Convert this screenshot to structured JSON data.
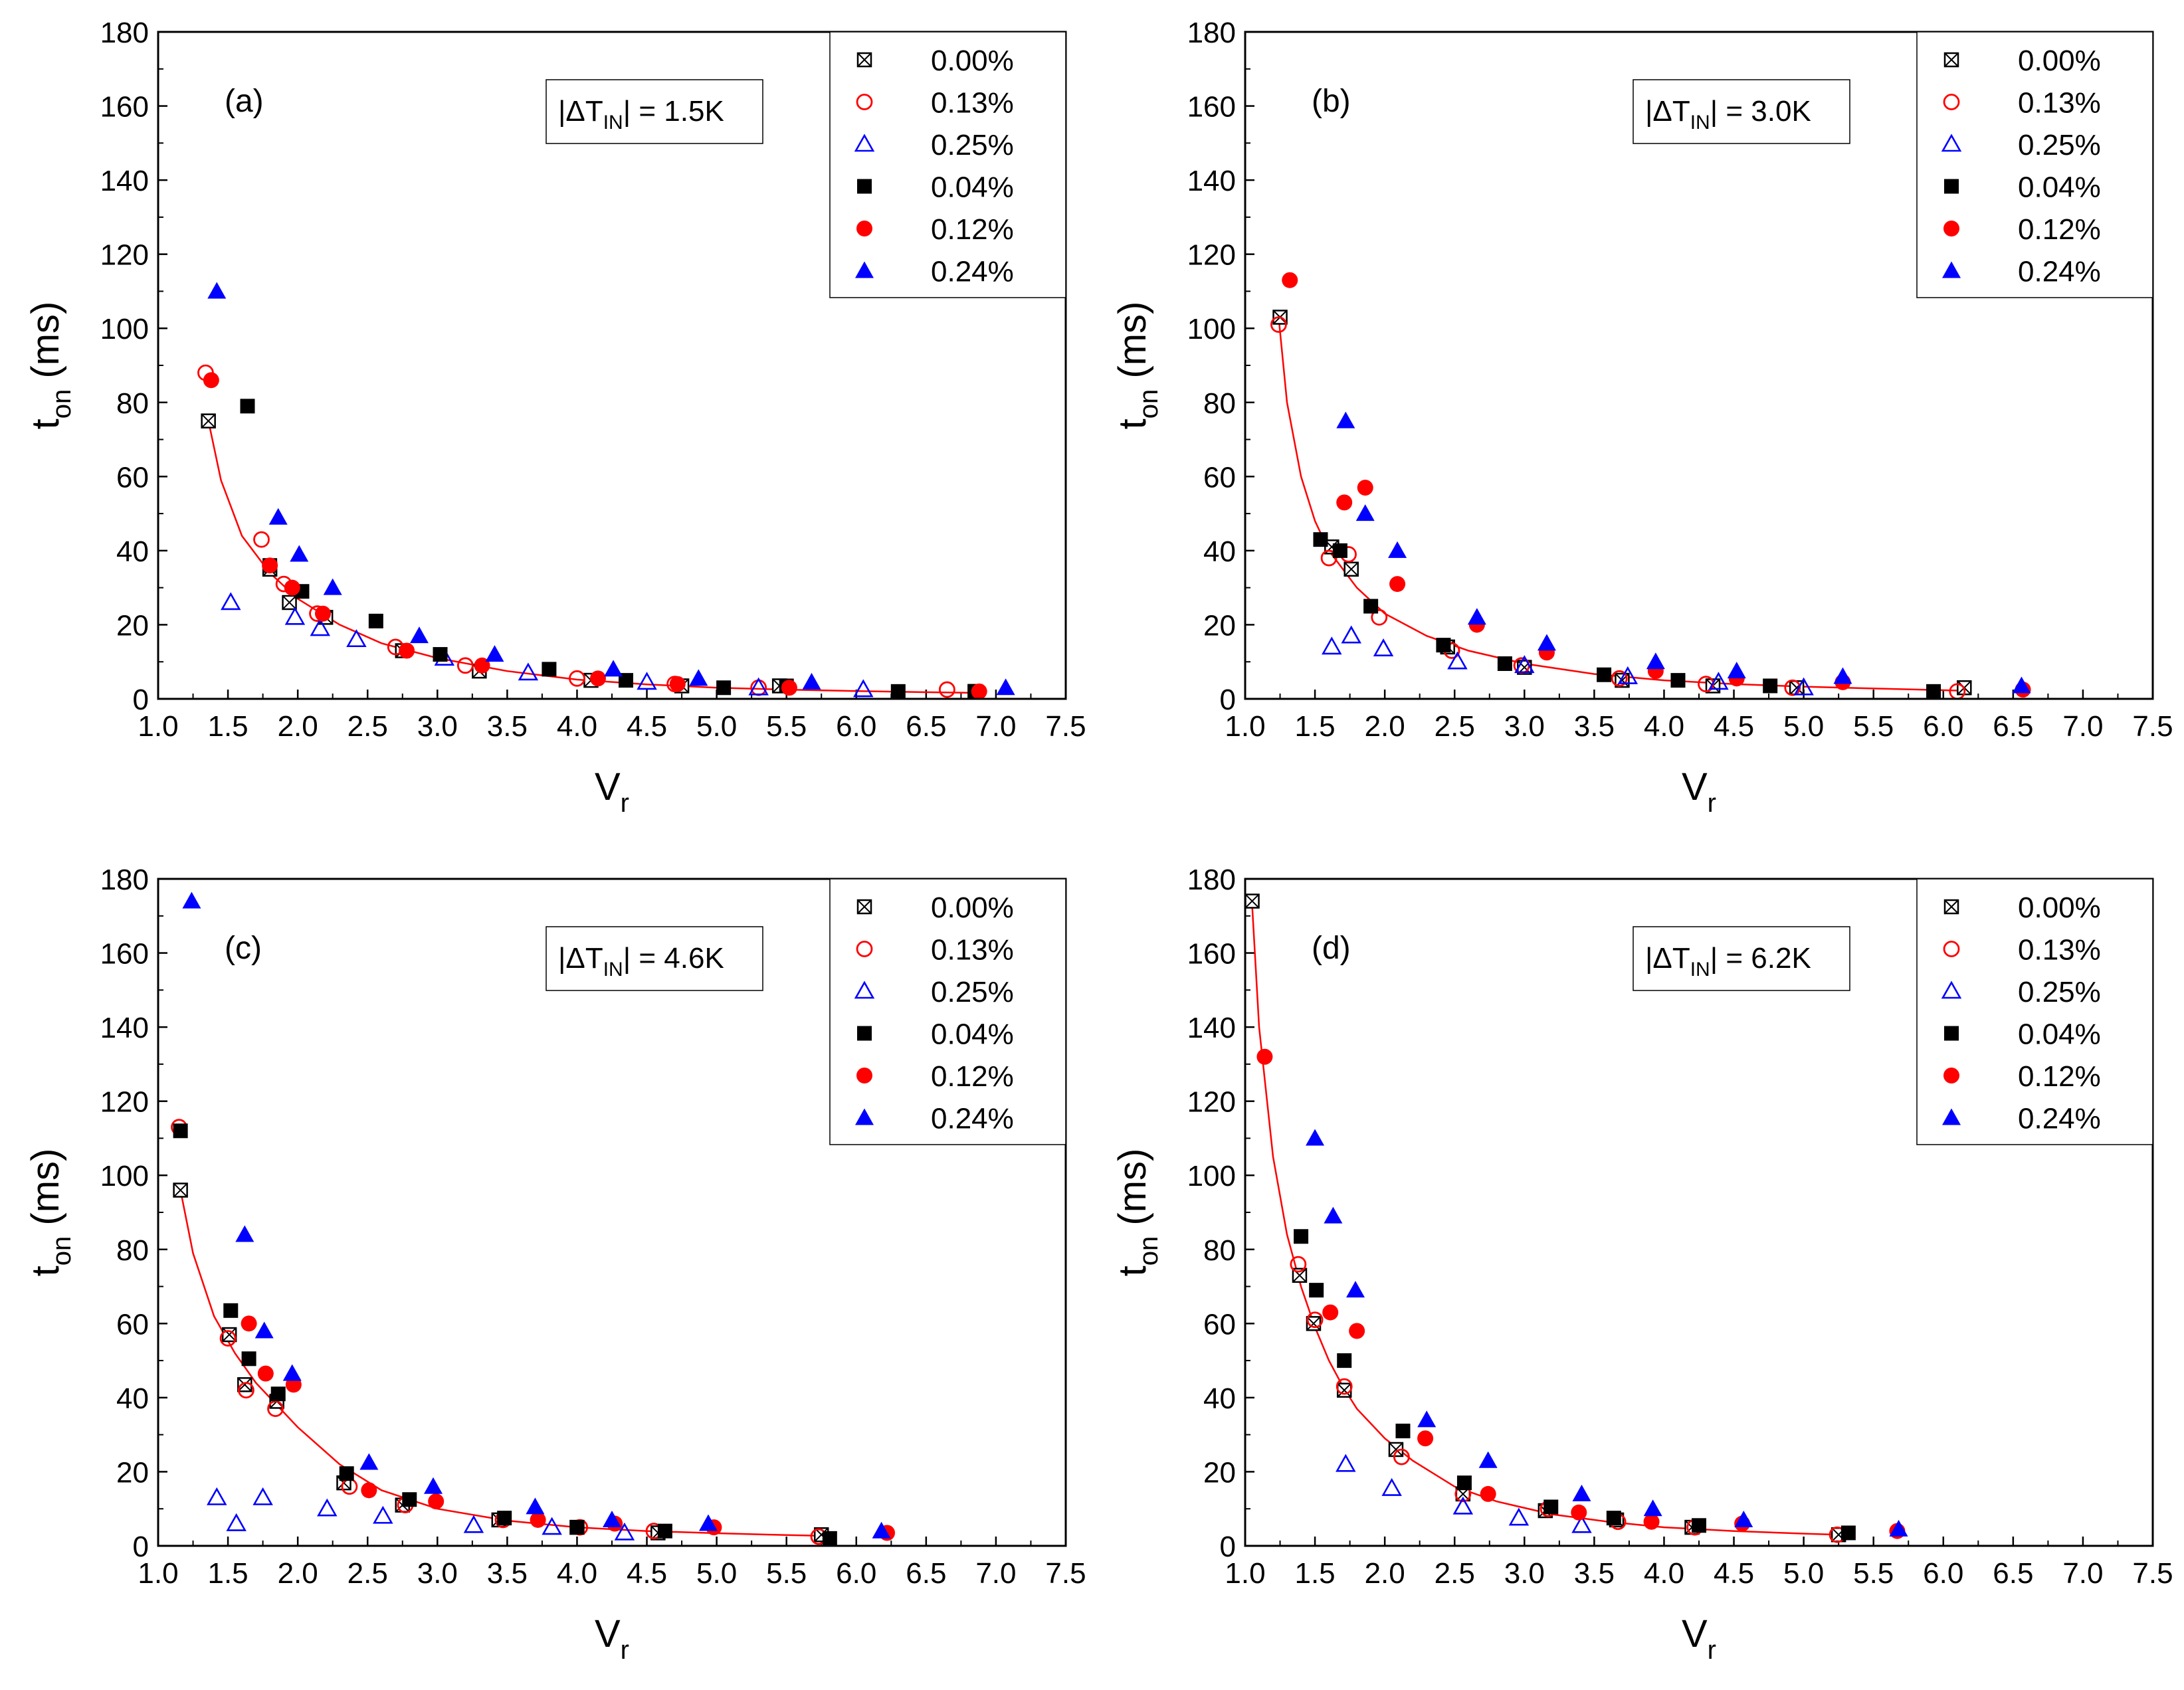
{
  "figure": {
    "series_names": [
      "0.00%",
      "0.13%",
      "0.25%",
      "0.04%",
      "0.12%",
      "0.24%"
    ],
    "series_style": [
      {
        "name": "0.00%",
        "marker": "square-cross-open",
        "color": "#000000"
      },
      {
        "name": "0.13%",
        "marker": "circle-open",
        "color": "#ff0000"
      },
      {
        "name": "0.25%",
        "marker": "triangle-open",
        "color": "#0000ff"
      },
      {
        "name": "0.04%",
        "marker": "square-filled",
        "color": "#000000"
      },
      {
        "name": "0.12%",
        "marker": "circle-filled",
        "color": "#ff0000"
      },
      {
        "name": "0.24%",
        "marker": "triangle-filled",
        "color": "#0000ff"
      }
    ],
    "fit_color": "#ff0000"
  },
  "chart_data": [
    {
      "type": "scatter",
      "panel_label": "(a)",
      "annotation": {
        "prefix": "|ΔT",
        "sub": "IN",
        "suffix": "| = 1.5K"
      },
      "xlabel": {
        "main": "V",
        "sub": "r"
      },
      "ylabel": {
        "main": "t",
        "sub": "on",
        "suffix": " (ms)"
      },
      "xlim": [
        1.0,
        7.5
      ],
      "ylim": [
        0,
        180
      ],
      "xticks": [
        "1.0",
        "1.5",
        "2.0",
        "2.5",
        "3.0",
        "3.5",
        "4.0",
        "4.5",
        "5.0",
        "5.5",
        "6.0",
        "6.5",
        "7.0",
        "7.5"
      ],
      "yticks": [
        "0",
        "20",
        "40",
        "60",
        "80",
        "100",
        "120",
        "140",
        "160",
        "180"
      ],
      "fit": {
        "x": [
          1.36,
          1.45,
          1.6,
          1.8,
          2.0,
          2.3,
          2.6,
          3.0,
          3.5,
          4.0,
          4.5,
          5.0,
          5.5,
          6.0,
          6.5,
          6.9
        ],
        "y": [
          75,
          59,
          44,
          34,
          27,
          20,
          15,
          11,
          7.5,
          5.2,
          3.9,
          3.0,
          2.5,
          2.1,
          1.8,
          1.6
        ]
      },
      "series": [
        {
          "name": "0.00%",
          "x": [
            1.36,
            1.8,
            1.94,
            2.2,
            2.75,
            3.3,
            4.1,
            4.75,
            5.45,
            6.85
          ],
          "y": [
            75,
            35,
            26,
            22,
            13,
            7.5,
            5,
            3.5,
            3.5,
            2
          ]
        },
        {
          "name": "0.13%",
          "x": [
            1.34,
            1.74,
            1.9,
            2.14,
            2.7,
            3.2,
            4.0,
            4.7,
            5.3,
            6.65
          ],
          "y": [
            88,
            43,
            31,
            23,
            14,
            9,
            5.5,
            4,
            3,
            2.5
          ]
        },
        {
          "name": "0.25%",
          "x": [
            1.52,
            1.98,
            2.16,
            2.42,
            3.05,
            3.65,
            4.5,
            5.3,
            6.05
          ],
          "y": [
            26,
            22,
            19,
            16,
            11,
            7,
            4.5,
            3,
            2.5
          ]
        },
        {
          "name": "0.04%",
          "x": [
            1.64,
            1.8,
            2.03,
            2.56,
            3.02,
            3.8,
            4.35,
            5.05,
            5.5,
            6.3,
            6.85
          ],
          "y": [
            79,
            36,
            29,
            21,
            12,
            8,
            5,
            3,
            3.5,
            2,
            2
          ]
        },
        {
          "name": "0.12%",
          "x": [
            1.38,
            1.8,
            1.96,
            2.18,
            2.78,
            3.32,
            4.15,
            4.72,
            5.52,
            6.88
          ],
          "y": [
            86,
            36,
            30,
            23,
            13,
            9,
            5.5,
            4,
            3,
            2
          ]
        },
        {
          "name": "0.24%",
          "x": [
            1.42,
            1.86,
            2.01,
            2.25,
            2.87,
            3.41,
            4.26,
            4.87,
            5.68,
            7.07
          ],
          "y": [
            110,
            49,
            39,
            30,
            17,
            12,
            8,
            5.5,
            4.5,
            3
          ]
        }
      ]
    },
    {
      "type": "scatter",
      "panel_label": "(b)",
      "annotation": {
        "prefix": "|ΔT",
        "sub": "IN",
        "suffix": "| = 3.0K"
      },
      "xlabel": {
        "main": "V",
        "sub": "r"
      },
      "ylabel": {
        "main": "t",
        "sub": "on",
        "suffix": " (ms)"
      },
      "xlim": [
        1.0,
        7.5
      ],
      "ylim": [
        0,
        180
      ],
      "xticks": [
        "1.0",
        "1.5",
        "2.0",
        "2.5",
        "3.0",
        "3.5",
        "4.0",
        "4.5",
        "5.0",
        "5.5",
        "6.0",
        "6.5",
        "7.0",
        "7.5"
      ],
      "yticks": [
        "0",
        "20",
        "40",
        "60",
        "80",
        "100",
        "120",
        "140",
        "160",
        "180"
      ],
      "fit": {
        "x": [
          1.24,
          1.3,
          1.4,
          1.5,
          1.6,
          1.8,
          2.0,
          2.3,
          2.6,
          3.0,
          3.5,
          4.0,
          4.5,
          5.0,
          5.5,
          6.15
        ],
        "y": [
          103,
          80,
          60,
          48,
          40,
          30,
          23,
          17,
          13,
          9.5,
          6.7,
          5,
          4,
          3.3,
          2.8,
          2.2
        ]
      },
      "series": [
        {
          "name": "0.00%",
          "x": [
            1.25,
            1.62,
            1.76,
            2.45,
            3.0,
            3.7,
            4.35,
            4.95,
            6.15
          ],
          "y": [
            103,
            41,
            35,
            14,
            8.5,
            5,
            3.5,
            3,
            3
          ]
        },
        {
          "name": "0.13%",
          "x": [
            1.24,
            1.6,
            1.74,
            1.96,
            2.48,
            2.98,
            3.68,
            4.3,
            4.92,
            6.1
          ],
          "y": [
            101,
            38,
            39,
            22,
            13,
            9,
            5.5,
            4,
            3,
            2
          ]
        },
        {
          "name": "0.25%",
          "x": [
            1.62,
            1.76,
            1.99,
            2.52,
            3.0,
            3.74,
            4.39,
            5.0
          ],
          "y": [
            14,
            17,
            13.5,
            10,
            9,
            6,
            4.5,
            3
          ]
        },
        {
          "name": "0.04%",
          "x": [
            1.54,
            1.68,
            1.9,
            2.42,
            2.86,
            3.57,
            4.1,
            4.76,
            5.93
          ],
          "y": [
            43,
            40,
            25,
            14.5,
            9.5,
            6.5,
            5,
            3.5,
            2
          ]
        },
        {
          "name": "0.12%",
          "x": [
            1.32,
            1.71,
            1.86,
            2.09,
            2.66,
            3.16,
            3.94,
            4.52,
            5.28,
            6.57
          ],
          "y": [
            113,
            53,
            57,
            31,
            20,
            12.5,
            7.5,
            5.5,
            4.5,
            2.5
          ]
        },
        {
          "name": "0.24%",
          "x": [
            1.72,
            1.86,
            2.09,
            2.66,
            3.16,
            3.94,
            4.52,
            5.28,
            6.56
          ],
          "y": [
            75,
            50,
            40,
            22,
            15,
            10,
            7.5,
            6,
            3.5
          ]
        }
      ]
    },
    {
      "type": "scatter",
      "panel_label": "(c)",
      "annotation": {
        "prefix": "|ΔT",
        "sub": "IN",
        "suffix": "| = 4.6K"
      },
      "xlabel": {
        "main": "V",
        "sub": "r"
      },
      "ylabel": {
        "main": "t",
        "sub": "on",
        "suffix": " (ms)"
      },
      "xlim": [
        1.0,
        7.5
      ],
      "ylim": [
        0,
        180
      ],
      "xticks": [
        "1.0",
        "1.5",
        "2.0",
        "2.5",
        "3.0",
        "3.5",
        "4.0",
        "4.5",
        "5.0",
        "5.5",
        "6.0",
        "6.5",
        "7.0",
        "7.5"
      ],
      "yticks": [
        "0",
        "20",
        "40",
        "60",
        "80",
        "100",
        "120",
        "140",
        "160",
        "180"
      ],
      "fit": {
        "x": [
          1.16,
          1.25,
          1.4,
          1.55,
          1.7,
          1.85,
          2.0,
          2.3,
          2.6,
          3.0,
          3.5,
          4.0,
          4.5,
          5.0,
          5.5,
          5.75
        ],
        "y": [
          96,
          79,
          62,
          52,
          44,
          38,
          32,
          22,
          15,
          10,
          6.8,
          5,
          4,
          3.4,
          2.9,
          2.7
        ]
      },
      "series": [
        {
          "name": "0.00%",
          "x": [
            1.16,
            1.51,
            1.62,
            1.85,
            2.33,
            2.75,
            3.44,
            4.0,
            4.58,
            5.75
          ],
          "y": [
            96,
            57,
            43.5,
            39,
            17,
            11,
            7,
            5,
            3.5,
            3
          ]
        },
        {
          "name": "0.13%",
          "x": [
            1.15,
            1.5,
            1.63,
            1.84,
            2.37,
            2.77,
            3.47,
            4.02,
            4.55,
            5.73
          ],
          "y": [
            113,
            56,
            42,
            37,
            16,
            11,
            7,
            5,
            4,
            2.5
          ]
        },
        {
          "name": "0.25%",
          "x": [
            1.42,
            1.56,
            1.75,
            2.21,
            2.61,
            3.26,
            3.82,
            4.34
          ],
          "y": [
            13,
            6,
            13,
            10,
            8,
            5.5,
            5,
            3.5
          ]
        },
        {
          "name": "0.04%",
          "x": [
            1.16,
            1.52,
            1.65,
            1.86,
            2.35,
            2.8,
            3.48,
            4.0,
            4.63,
            5.81
          ],
          "y": [
            112,
            63.5,
            50.5,
            41,
            19.5,
            12.5,
            7.5,
            5,
            4,
            2
          ]
        },
        {
          "name": "0.12%",
          "x": [
            1.65,
            1.77,
            1.97,
            2.51,
            2.99,
            3.72,
            4.27,
            4.98,
            6.22
          ],
          "y": [
            60,
            46.5,
            43.5,
            15,
            12,
            7,
            6,
            5,
            3.5
          ]
        },
        {
          "name": "0.24%",
          "x": [
            1.24,
            1.62,
            1.76,
            1.96,
            2.51,
            2.97,
            3.7,
            4.25,
            4.94,
            6.18
          ],
          "y": [
            174,
            84,
            58,
            46.5,
            22.5,
            16,
            10.5,
            7,
            6,
            4
          ]
        }
      ]
    },
    {
      "type": "scatter",
      "panel_label": "(d)",
      "annotation": {
        "prefix": "|ΔT",
        "sub": "IN",
        "suffix": "| = 6.2K"
      },
      "xlabel": {
        "main": "V",
        "sub": "r"
      },
      "ylabel": {
        "main": "t",
        "sub": "on",
        "suffix": " (ms)"
      },
      "xlim": [
        1.0,
        7.5
      ],
      "ylim": [
        0,
        180
      ],
      "xticks": [
        "1.0",
        "1.5",
        "2.0",
        "2.5",
        "3.0",
        "3.5",
        "4.0",
        "4.5",
        "5.0",
        "5.5",
        "6.0",
        "6.5",
        "7.0",
        "7.5"
      ],
      "yticks": [
        "0",
        "20",
        "40",
        "60",
        "80",
        "100",
        "120",
        "140",
        "160",
        "180"
      ],
      "fit": {
        "x": [
          1.05,
          1.1,
          1.2,
          1.3,
          1.4,
          1.5,
          1.6,
          1.7,
          1.8,
          2.0,
          2.2,
          2.5,
          2.8,
          3.2,
          3.6,
          4.0,
          4.5,
          5.0,
          5.25
        ],
        "y": [
          173,
          140,
          105,
          84,
          70,
          59,
          50,
          43,
          37,
          29,
          23,
          16,
          12,
          8.5,
          6.5,
          5,
          4,
          3.3,
          3
        ]
      },
      "series": [
        {
          "name": "0.00%",
          "x": [
            1.05,
            1.39,
            1.49,
            1.71,
            2.08,
            2.56,
            3.15,
            3.66,
            4.2,
            5.25
          ],
          "y": [
            174,
            73,
            60,
            42,
            26,
            14,
            9.5,
            7,
            5,
            3
          ]
        },
        {
          "name": "0.13%",
          "x": [
            1.38,
            1.5,
            1.71,
            2.12,
            2.56,
            3.17,
            3.67,
            4.22,
            5.24
          ],
          "y": [
            76,
            61,
            43,
            24,
            14,
            10,
            6.5,
            5,
            3
          ]
        },
        {
          "name": "0.25%",
          "x": [
            1.72,
            2.05,
            2.56,
            2.96,
            3.41
          ],
          "y": [
            22,
            15.5,
            10.5,
            7.5,
            5.5
          ]
        },
        {
          "name": "0.04%",
          "x": [
            1.4,
            1.51,
            1.71,
            2.13,
            2.57,
            3.19,
            3.64,
            4.25,
            5.32
          ],
          "y": [
            83.5,
            69,
            50,
            31,
            17,
            10.5,
            7.5,
            5.5,
            3.5
          ]
        },
        {
          "name": "0.12%",
          "x": [
            1.14,
            1.61,
            1.8,
            2.29,
            2.74,
            3.39,
            3.91,
            4.56,
            5.67
          ],
          "y": [
            132,
            63,
            58,
            29,
            14,
            9,
            6.5,
            6,
            4
          ]
        },
        {
          "name": "0.24%",
          "x": [
            1.5,
            1.63,
            1.79,
            2.3,
            2.74,
            3.41,
            3.92,
            4.57,
            5.68
          ],
          "y": [
            110,
            89,
            69,
            34,
            23,
            14,
            10,
            7,
            4.5
          ]
        }
      ]
    }
  ]
}
